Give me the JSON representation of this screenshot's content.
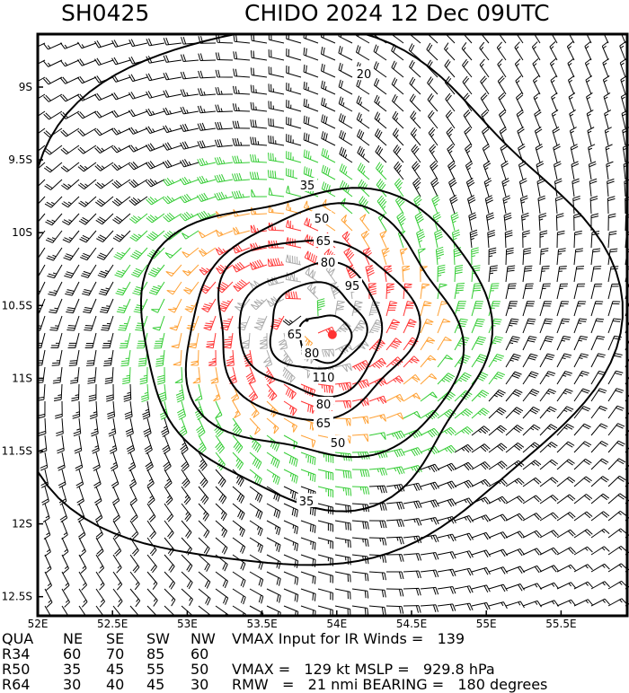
{
  "header": {
    "storm_id": "SH0425",
    "storm_info": "CHIDO 2024 12 Dec 09UTC"
  },
  "chart_data": {
    "type": "contour",
    "title": "SH0425   CHIDO 2024 12 Dec 09UTC",
    "x_ticks": [
      "52E",
      "52.5E",
      "53E",
      "53.5E",
      "54E",
      "54.5E",
      "55E",
      "55.5E"
    ],
    "x_values": [
      52,
      52.5,
      53,
      53.5,
      54,
      54.5,
      55,
      55.5
    ],
    "y_ticks": [
      "9S",
      "9.5S",
      "10S",
      "10.5S",
      "11S",
      "11.5S",
      "12S",
      "12.5S"
    ],
    "y_values": [
      -9,
      -9.5,
      -10,
      -10.5,
      -11,
      -11.5,
      -12,
      -12.5
    ],
    "xlim": [
      52,
      55.95
    ],
    "ylim": [
      -12.75,
      -8.65
    ],
    "contour_levels": [
      20,
      35,
      50,
      65,
      80,
      95,
      110
    ],
    "contour_labels": [
      "20",
      "35",
      "50",
      "35",
      "50",
      "65",
      "80",
      "95",
      "65",
      "80",
      "110",
      "80",
      "65"
    ],
    "center": {
      "lon": 53.8,
      "lat": -10.6
    },
    "max_wind_marker": {
      "lon": 53.97,
      "lat": -10.7,
      "color": "#ff3333"
    },
    "barb_colors": {
      "below_34": "#000000",
      "34_to_50": "#33cc33",
      "50_to_64": "#ffa033",
      "64_to_95": "#ff3333",
      "above_95": "#aaaaaa"
    }
  },
  "table": {
    "headers": [
      "QUA",
      "NE",
      "SE",
      "SW",
      "NW"
    ],
    "rows": [
      [
        "R34",
        "60",
        "70",
        "85",
        "60"
      ],
      [
        "R50",
        "35",
        "45",
        "55",
        "50"
      ],
      [
        "R64",
        "30",
        "40",
        "45",
        "30"
      ]
    ]
  },
  "summary": {
    "vmax_ir": "VMAX Input for IR Winds =   139",
    "vmax_mslp": "VMAX =   129 kt MSLP =   929.8 hPa",
    "rmw_bearing": "RMW   =   21 nmi BEARING =   180 degrees"
  }
}
